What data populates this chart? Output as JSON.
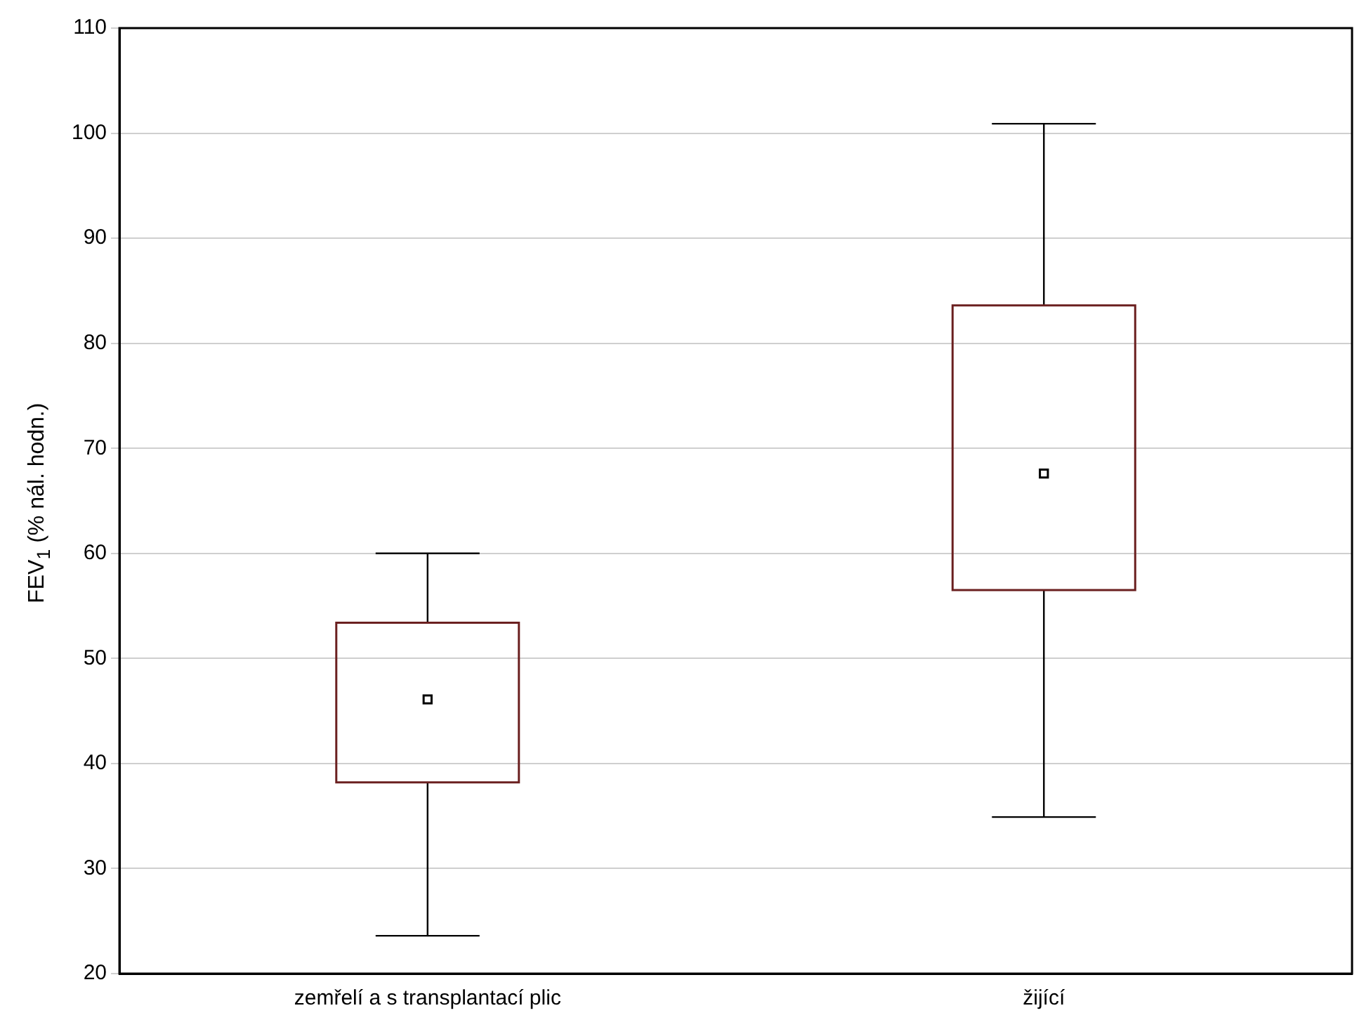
{
  "chart_data": {
    "type": "box",
    "ylabel": "FEV$_{1}$ (% nál. hodn.)",
    "categories": [
      "zemřelí a s transplantací plic",
      "žijící"
    ],
    "boxes": [
      {
        "low": 23.6,
        "q1": 38.2,
        "median": 46.1,
        "q3": 53.4,
        "high": 60
      },
      {
        "low": 34.9,
        "q1": 56.5,
        "median": 67.6,
        "q3": 83.6,
        "high": 100.9
      }
    ],
    "color": "#6b2020",
    "ylim": [
      20,
      110
    ],
    "yticks": [
      20,
      30,
      40,
      50,
      60,
      70,
      80,
      90,
      100,
      110
    ],
    "grid": "y",
    "marker": "square"
  }
}
